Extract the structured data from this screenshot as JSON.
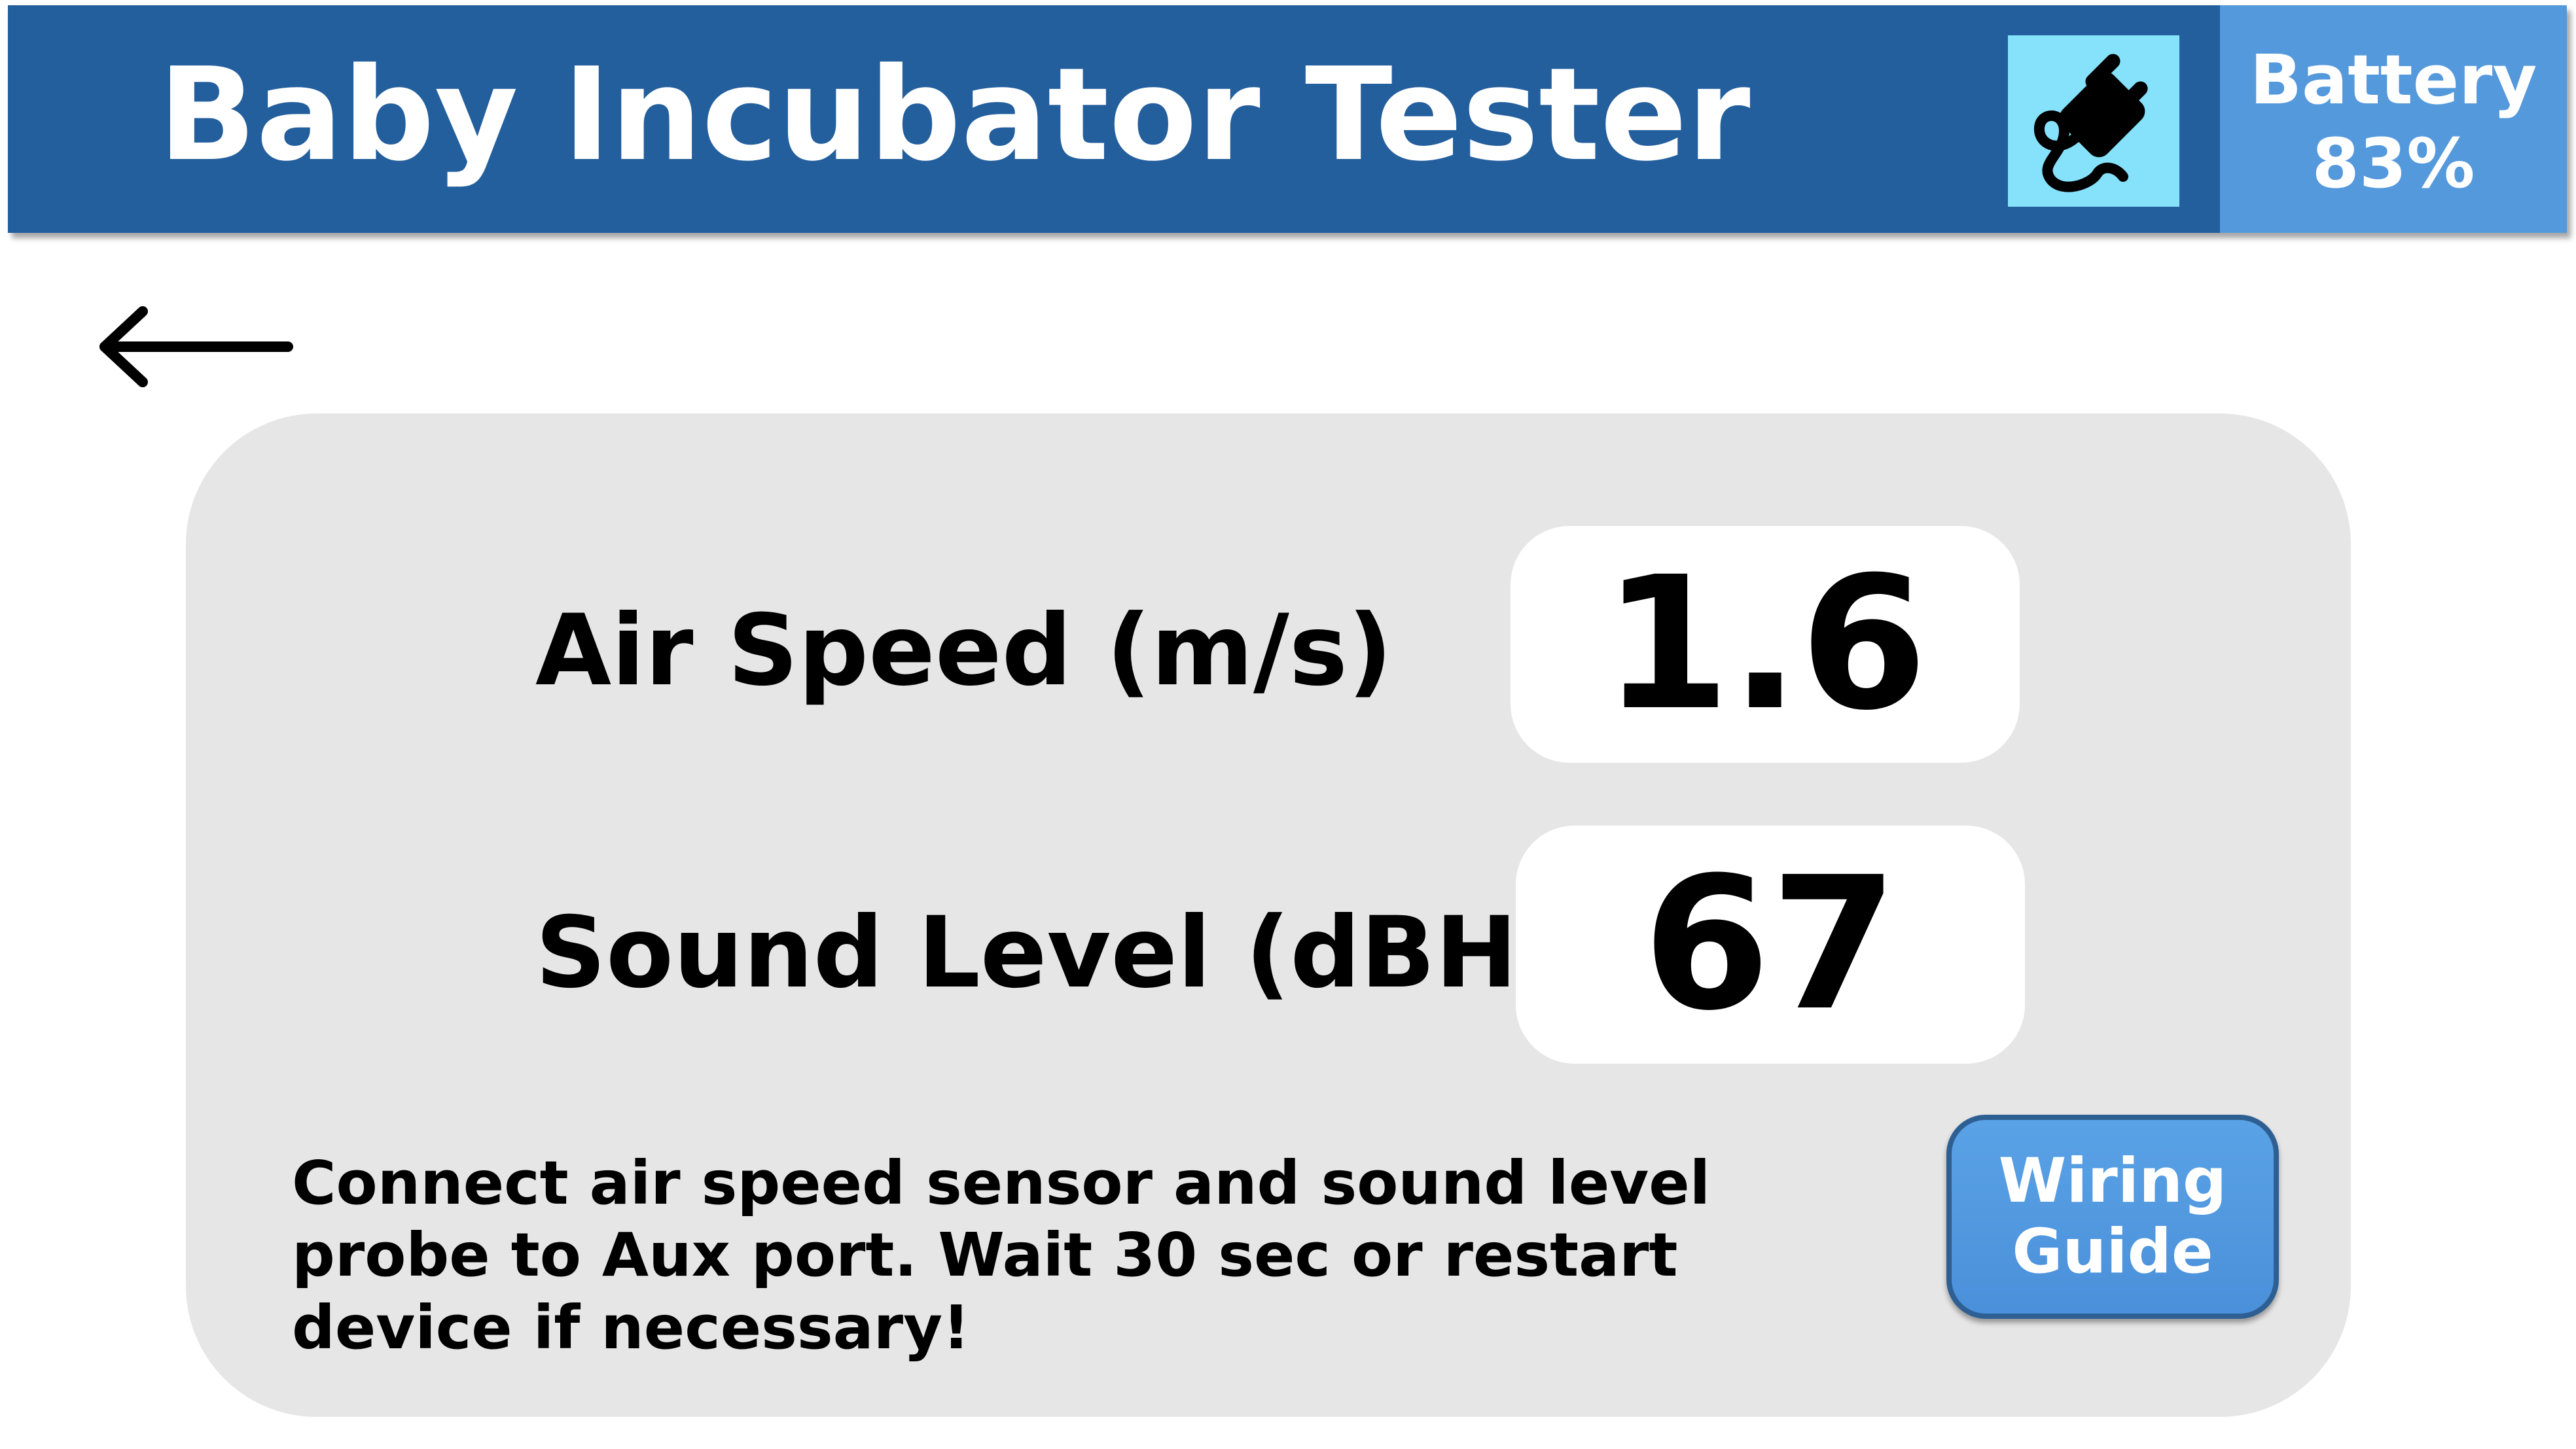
{
  "header": {
    "title": "Baby Incubator Tester",
    "power_icon": "plug-icon",
    "battery_label": "Battery",
    "battery_value": "83%"
  },
  "navigation": {
    "back_icon": "arrow-left-icon"
  },
  "readings": [
    {
      "label": "Air Speed (m/s)",
      "value": "1.6"
    },
    {
      "label": "Sound Level (dBHL)",
      "value": "67"
    }
  ],
  "instructions": "Connect air speed sensor and sound level probe to Aux port. Wait 30 sec or restart device if necessary!",
  "wiring_button": {
    "line1": "Wiring",
    "line2": "Guide"
  },
  "colors": {
    "header_bg": "#245f9d",
    "battery_bg": "#5599dd",
    "plug_bg": "#86e1fb",
    "panel_bg": "#e6e6e6",
    "button_bg": "#4a90da"
  }
}
